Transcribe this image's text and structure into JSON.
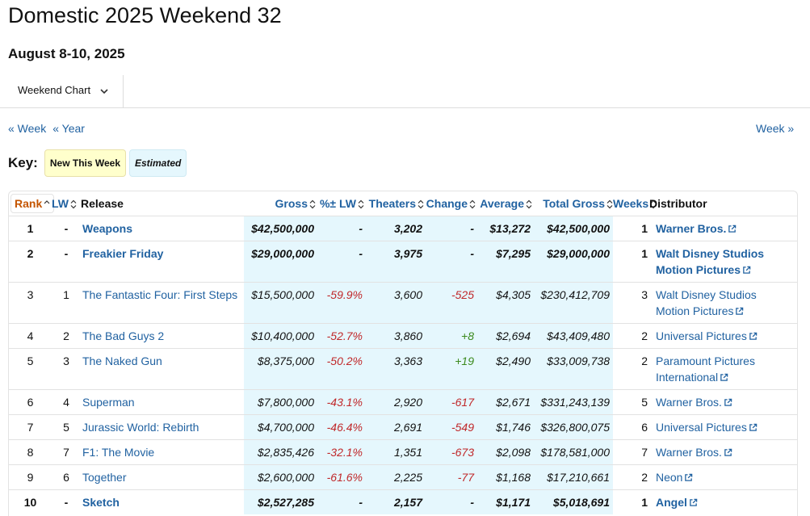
{
  "page": {
    "title": "Domestic 2025 Weekend 32",
    "subtitle": "August 8-10, 2025",
    "dropdown_label": "Weekend Chart",
    "nav_prev_week": "« Week",
    "nav_prev_year": "« Year",
    "nav_next_week": "Week »",
    "key_label": "Key:",
    "key_new": "New This Week",
    "key_estimated": "Estimated"
  },
  "table": {
    "headers": {
      "rank": "Rank",
      "lw": "LW",
      "release": "Release",
      "gross": "Gross",
      "pct_lw": "%± LW",
      "theaters": "Theaters",
      "change": "Change",
      "average": "Average",
      "total_gross": "Total Gross",
      "weeks": "Weeks",
      "distributor": "Distributor"
    },
    "rows": [
      {
        "rank": "1",
        "lw": "-",
        "release": "Weapons",
        "gross": "$42,500,000",
        "pct": "-",
        "theaters": "3,202",
        "change": "-",
        "average": "$13,272",
        "total": "$42,500,000",
        "weeks": "1",
        "dist1": "Warner Bros.",
        "dist2": "",
        "new": true,
        "pctClass": "",
        "chgClass": ""
      },
      {
        "rank": "2",
        "lw": "-",
        "release": "Freakier Friday",
        "gross": "$29,000,000",
        "pct": "-",
        "theaters": "3,975",
        "change": "-",
        "average": "$7,295",
        "total": "$29,000,000",
        "weeks": "1",
        "dist1": "Walt Disney Studios",
        "dist2": "Motion Pictures",
        "new": true,
        "pctClass": "",
        "chgClass": ""
      },
      {
        "rank": "3",
        "lw": "1",
        "release": "The Fantastic Four: First Steps",
        "gross": "$15,500,000",
        "pct": "-59.9%",
        "theaters": "3,600",
        "change": "-525",
        "average": "$4,305",
        "total": "$230,412,709",
        "weeks": "3",
        "dist1": "Walt Disney Studios",
        "dist2": "Motion Pictures",
        "new": false,
        "pctClass": "neg",
        "chgClass": "neg"
      },
      {
        "rank": "4",
        "lw": "2",
        "release": "The Bad Guys 2",
        "gross": "$10,400,000",
        "pct": "-52.7%",
        "theaters": "3,860",
        "change": "+8",
        "average": "$2,694",
        "total": "$43,409,480",
        "weeks": "2",
        "dist1": "Universal Pictures",
        "dist2": "",
        "new": false,
        "pctClass": "neg",
        "chgClass": "pos"
      },
      {
        "rank": "5",
        "lw": "3",
        "release": "The Naked Gun",
        "gross": "$8,375,000",
        "pct": "-50.2%",
        "theaters": "3,363",
        "change": "+19",
        "average": "$2,490",
        "total": "$33,009,738",
        "weeks": "2",
        "dist1": "Paramount Pictures",
        "dist2": "International",
        "new": false,
        "pctClass": "neg",
        "chgClass": "pos"
      },
      {
        "rank": "6",
        "lw": "4",
        "release": "Superman",
        "gross": "$7,800,000",
        "pct": "-43.1%",
        "theaters": "2,920",
        "change": "-617",
        "average": "$2,671",
        "total": "$331,243,139",
        "weeks": "5",
        "dist1": "Warner Bros.",
        "dist2": "",
        "new": false,
        "pctClass": "neg",
        "chgClass": "neg"
      },
      {
        "rank": "7",
        "lw": "5",
        "release": "Jurassic World: Rebirth",
        "gross": "$4,700,000",
        "pct": "-46.4%",
        "theaters": "2,691",
        "change": "-549",
        "average": "$1,746",
        "total": "$326,800,075",
        "weeks": "6",
        "dist1": "Universal Pictures",
        "dist2": "",
        "new": false,
        "pctClass": "neg",
        "chgClass": "neg"
      },
      {
        "rank": "8",
        "lw": "7",
        "release": "F1: The Movie",
        "gross": "$2,835,426",
        "pct": "-32.1%",
        "theaters": "1,351",
        "change": "-673",
        "average": "$2,098",
        "total": "$178,581,000",
        "weeks": "7",
        "dist1": "Warner Bros.",
        "dist2": "",
        "new": false,
        "pctClass": "neg",
        "chgClass": "neg"
      },
      {
        "rank": "9",
        "lw": "6",
        "release": "Together",
        "gross": "$2,600,000",
        "pct": "-61.6%",
        "theaters": "2,225",
        "change": "-77",
        "average": "$1,168",
        "total": "$17,210,661",
        "weeks": "2",
        "dist1": "Neon",
        "dist2": "",
        "new": false,
        "pctClass": "neg",
        "chgClass": "neg"
      },
      {
        "rank": "10",
        "lw": "-",
        "release": "Sketch",
        "gross": "$2,527,285",
        "pct": "-",
        "theaters": "2,157",
        "change": "-",
        "average": "$1,171",
        "total": "$5,018,691",
        "weeks": "1",
        "dist1": "Angel",
        "dist2": "",
        "new": true,
        "pctClass": "",
        "chgClass": ""
      }
    ]
  },
  "colors": {
    "link": "#2162a1",
    "negative": "#c0282a",
    "positive": "#3c8a1e",
    "estimated_highlight": "#e5f7fd",
    "new_highlight": "#ffffcc",
    "rank_header": "#c45500"
  },
  "icons": [
    "chevron-down-icon",
    "sort-icon",
    "external-link-icon"
  ]
}
